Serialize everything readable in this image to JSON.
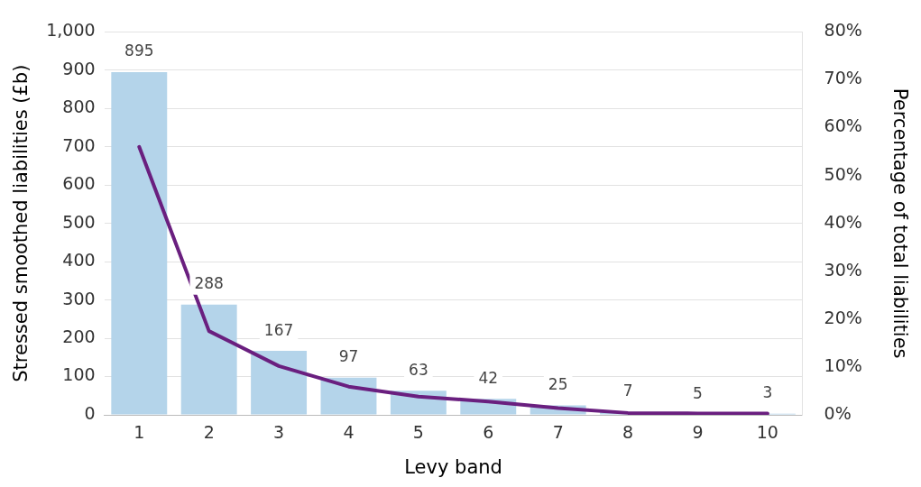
{
  "chart_data": {
    "type": "bar",
    "xlabel": "Levy band",
    "ylabel": "Stressed smoothed liabilities (£b)",
    "y2label": "Percentage of total liabilities",
    "categories": [
      "1",
      "2",
      "3",
      "4",
      "5",
      "6",
      "7",
      "8",
      "9",
      "10"
    ],
    "series": [
      {
        "color": "#b4d4ea",
        "values": [
          895,
          288,
          167,
          97,
          63,
          42,
          25,
          7,
          null,
          3
        ],
        "value_labels": [
          "895",
          "288",
          "167",
          "97",
          "63",
          "42",
          "25",
          "7",
          "5",
          "3"
        ]
      },
      {
        "type": "line",
        "axis": "y2",
        "color": "#6a1f7f",
        "values": [
          56,
          17.5,
          10.2,
          5.9,
          3.8,
          2.8,
          1.4,
          0.4,
          0.3,
          0.3
        ]
      }
    ],
    "ylim": [
      0,
      1000
    ],
    "yticks": [
      0,
      100,
      200,
      300,
      400,
      500,
      600,
      700,
      800,
      900,
      {
        "value": 1000,
        "label": "1,000"
      }
    ],
    "y2lim": [
      0,
      80
    ],
    "y2ticks": [
      {
        "value": 0,
        "label": "0%"
      },
      {
        "value": 10,
        "label": "10%"
      },
      {
        "value": 20,
        "label": "20%"
      },
      {
        "value": 30,
        "label": "30%"
      },
      {
        "value": 40,
        "label": "40%"
      },
      {
        "value": 50,
        "label": "50%"
      },
      {
        "value": 60,
        "label": "60%"
      },
      {
        "value": 70,
        "label": "70%"
      },
      {
        "value": 80,
        "label": "80%"
      }
    ],
    "grid": "y",
    "legend": false,
    "marker": "none",
    "line_style": "solid"
  }
}
